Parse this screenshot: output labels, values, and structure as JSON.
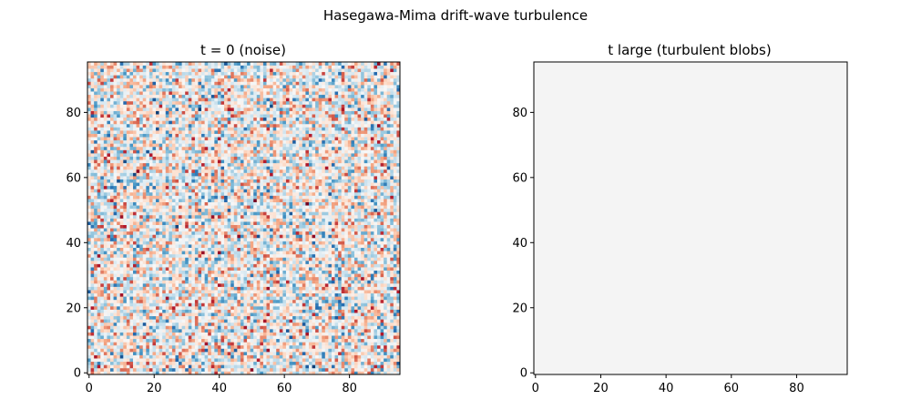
{
  "figure": {
    "suptitle": "Hasegawa-Mima drift-wave turbulence"
  },
  "chart_data": [
    {
      "type": "heatmap",
      "title": "t = 0 (noise)",
      "xlabel": "",
      "ylabel": "",
      "grid_size": [
        96,
        96
      ],
      "xlim": [
        -0.5,
        95.5
      ],
      "ylim": [
        -0.5,
        95.5
      ],
      "xticks": [
        0,
        20,
        40,
        60,
        80
      ],
      "yticks": [
        0,
        20,
        40,
        60,
        80
      ],
      "origin": "lower",
      "colormap": "RdBu_r",
      "field": "random white noise, values roughly uniform over the colormap range (blue = negative, white = zero, red = positive)",
      "grid": false
    },
    {
      "type": "heatmap",
      "title": "t large (turbulent blobs)",
      "xlabel": "",
      "ylabel": "",
      "grid_size": [
        96,
        96
      ],
      "xlim": [
        -0.5,
        95.5
      ],
      "ylim": [
        -0.5,
        95.5
      ],
      "xticks": [
        0,
        20,
        40,
        60,
        80
      ],
      "yticks": [
        0,
        20,
        40,
        60,
        80
      ],
      "origin": "lower",
      "colormap": "RdBu_r",
      "field": "uniform field (all cells equal, near-zero value)",
      "uniform_color": "#f4f4f4",
      "grid": false
    }
  ],
  "colors": {
    "cmap_stops": [
      "#053061",
      "#2166ac",
      "#4393c3",
      "#92c5de",
      "#d1e5f0",
      "#f7f7f7",
      "#fddbc7",
      "#f4a582",
      "#d6604d",
      "#b2182b",
      "#67001f"
    ],
    "axis": "#000000"
  }
}
